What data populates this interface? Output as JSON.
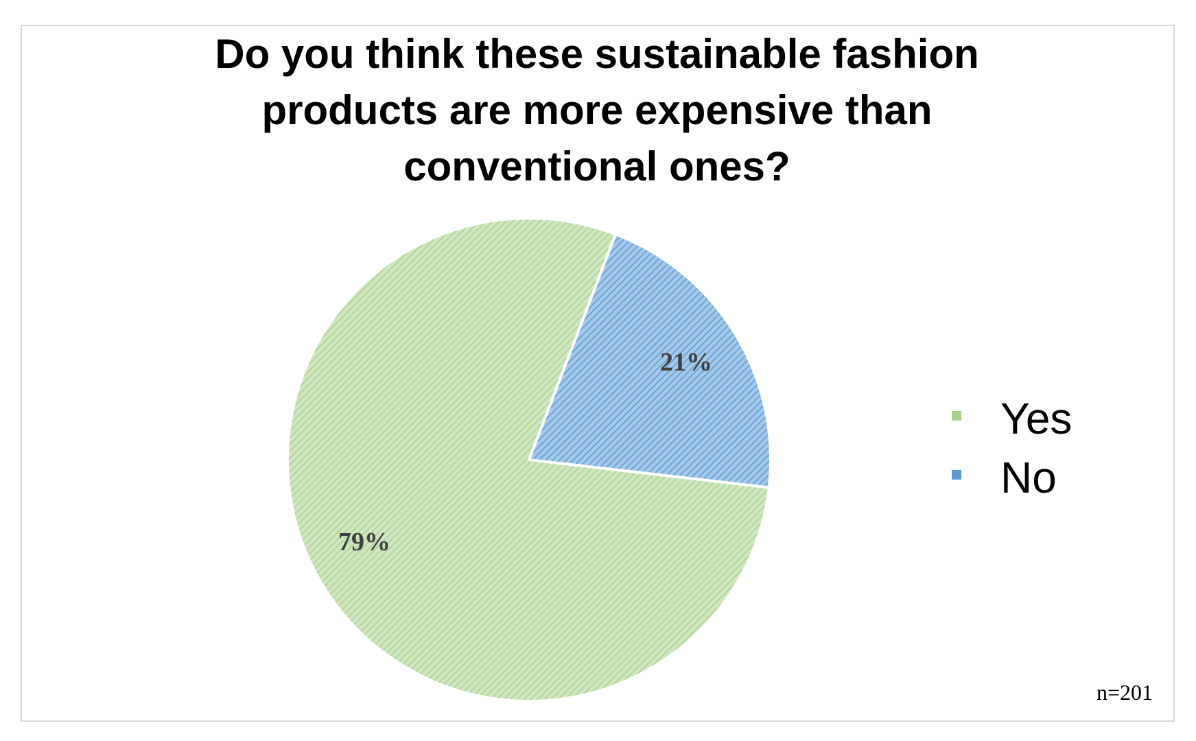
{
  "chart_data": {
    "type": "pie",
    "title": "Do you think these sustainable fashion products are more expensive than conventional ones?",
    "categories": [
      "Yes",
      "No"
    ],
    "values": [
      79,
      21
    ],
    "value_labels": [
      "79%",
      "21%"
    ],
    "colors": [
      "#a9d18e",
      "#5b9bd5"
    ],
    "annotation": "n=201"
  }
}
